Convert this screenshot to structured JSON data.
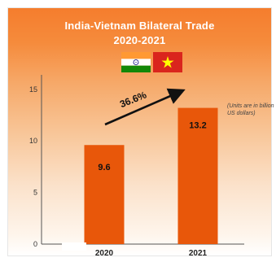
{
  "chart_data": {
    "type": "bar",
    "title_line1": "India-Vietnam Bilateral Trade",
    "title_line2": "2020-2021",
    "categories": [
      "2020",
      "2021"
    ],
    "values": [
      9.6,
      13.2
    ],
    "value_labels": [
      "9.6",
      "13.2"
    ],
    "yticks": [
      0,
      5,
      10,
      15
    ],
    "ylim": [
      0,
      16.4
    ],
    "annotation": "36.6%",
    "unit_note": "(Units are in billion US dollars)",
    "grid": false,
    "bar_color": "#e8570a",
    "axis_color": "#555555"
  },
  "flags": {
    "left": "india-flag",
    "right": "vietnam-flag"
  }
}
